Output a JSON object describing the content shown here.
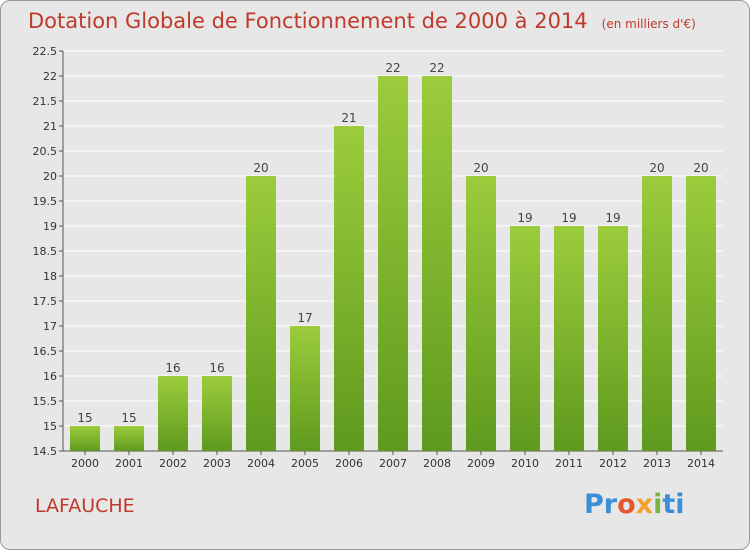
{
  "header": {
    "title": "Dotation Globale de Fonctionnement de 2000 à 2014",
    "unit": "(en milliers d'€)"
  },
  "footer": {
    "commune": "LAFAUCHE",
    "logo_letters": [
      "Pr",
      "o",
      "x",
      "i",
      "ti"
    ]
  },
  "colors": {
    "title": "#c0392b",
    "bar_light": "#9ccc3c",
    "bar_dark": "#5f9a1e",
    "background": "#e7e7e7"
  },
  "chart_data": {
    "type": "bar",
    "title": "Dotation Globale de Fonctionnement de 2000 à 2014",
    "xlabel": "",
    "ylabel": "",
    "categories": [
      "2000",
      "2001",
      "2002",
      "2003",
      "2004",
      "2005",
      "2006",
      "2007",
      "2008",
      "2009",
      "2010",
      "2011",
      "2012",
      "2013",
      "2014"
    ],
    "values": [
      15,
      15,
      16,
      16,
      20,
      17,
      21,
      22,
      22,
      20,
      19,
      19,
      19,
      20,
      20
    ],
    "data_labels": [
      "15",
      "15",
      "16",
      "16",
      "20",
      "17",
      "21",
      "22",
      "22",
      "20",
      "19",
      "19",
      "19",
      "20",
      "20"
    ],
    "ylim": [
      14.5,
      22.5
    ],
    "yticks": [
      "14.5",
      "15",
      "15.5",
      "16",
      "16.5",
      "17",
      "17.5",
      "18",
      "18.5",
      "19",
      "19.5",
      "20",
      "20.5",
      "21",
      "21.5",
      "22",
      "22.5"
    ],
    "grid": true
  }
}
